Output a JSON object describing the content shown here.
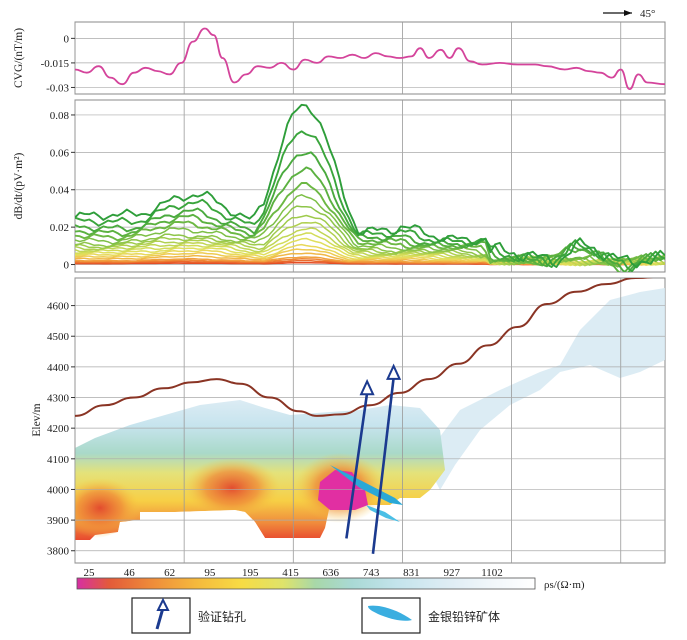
{
  "direction": {
    "label": "45°"
  },
  "chart_data": [
    {
      "type": "line",
      "id": "cvg",
      "ylabel": "CVG/(nT/m)",
      "yticks": [
        0,
        -0.015,
        -0.03
      ],
      "ylim": [
        -0.034,
        0.01
      ],
      "xlim": [
        0,
        100
      ],
      "color": "#d4449b",
      "series": [
        {
          "name": "CVG",
          "points": [
            [
              0,
              -0.019
            ],
            [
              2,
              -0.021
            ],
            [
              4,
              -0.017
            ],
            [
              6,
              -0.024
            ],
            [
              8,
              -0.028
            ],
            [
              10,
              -0.021
            ],
            [
              12,
              -0.018
            ],
            [
              14,
              -0.02
            ],
            [
              16,
              -0.022
            ],
            [
              18,
              -0.015
            ],
            [
              20,
              -0.002
            ],
            [
              22,
              0.006
            ],
            [
              23.5,
              0.002
            ],
            [
              25,
              -0.012
            ],
            [
              27,
              -0.027
            ],
            [
              29,
              -0.022
            ],
            [
              31,
              -0.017
            ],
            [
              33,
              -0.018
            ],
            [
              35,
              -0.015
            ],
            [
              37,
              -0.019
            ],
            [
              39,
              -0.013
            ],
            [
              41,
              -0.015
            ],
            [
              43,
              -0.011
            ],
            [
              45,
              -0.012
            ],
            [
              47,
              -0.01
            ],
            [
              49,
              -0.012
            ],
            [
              51,
              -0.009
            ],
            [
              53,
              -0.011
            ],
            [
              55,
              -0.012
            ],
            [
              57,
              -0.011
            ],
            [
              58.5,
              -0.006
            ],
            [
              60,
              -0.012
            ],
            [
              62,
              -0.007
            ],
            [
              63.5,
              -0.012
            ],
            [
              65,
              -0.006
            ],
            [
              67,
              -0.014
            ],
            [
              69,
              -0.016
            ],
            [
              72,
              -0.015
            ],
            [
              75,
              -0.016
            ],
            [
              78,
              -0.016
            ],
            [
              80,
              -0.017
            ],
            [
              83,
              -0.019
            ],
            [
              85,
              -0.018
            ],
            [
              87,
              -0.02
            ],
            [
              89,
              -0.021
            ],
            [
              91,
              -0.024
            ],
            [
              92.5,
              -0.019
            ],
            [
              94,
              -0.031
            ],
            [
              95.5,
              -0.022
            ],
            [
              97,
              -0.027
            ],
            [
              100,
              -0.028
            ]
          ]
        }
      ]
    },
    {
      "type": "line",
      "id": "dbdt",
      "ylabel": "dB/dt/(pV·m²)",
      "yticks": [
        0,
        0.02,
        0.04,
        0.06,
        0.08
      ],
      "ylim": [
        -0.004,
        0.088
      ],
      "xlim": [
        0,
        100
      ],
      "peak_x": 39,
      "peak_values": [
        0.084,
        0.071,
        0.06,
        0.051,
        0.043,
        0.037,
        0.032,
        0.027,
        0.023,
        0.019,
        0.016,
        0.013,
        0.01,
        0.008,
        0.006,
        0.004,
        0.003,
        0.002,
        0.001
      ],
      "base_values": [
        0.025,
        0.022,
        0.019,
        0.017,
        0.015,
        0.013,
        0.011,
        0.01,
        0.009,
        0.008,
        0.007,
        0.006,
        0.005,
        0.004,
        0.003,
        0.002,
        0.0015,
        0.001,
        0.0005
      ],
      "colors": [
        "#2e9e3a",
        "#3aa53c",
        "#4aaa3e",
        "#5bb140",
        "#6cb843",
        "#7dbf46",
        "#8ec549",
        "#9fcb4c",
        "#b0d050",
        "#c1d654",
        "#d2dc58",
        "#e0df5c",
        "#e8d85a",
        "#eecb52",
        "#f0b848",
        "#f0a03e",
        "#ee8534",
        "#ea692c",
        "#e44e26"
      ]
    },
    {
      "type": "heatmap",
      "id": "section",
      "ylabel": "Elev/m",
      "yticks": [
        3800,
        3900,
        4000,
        4100,
        4200,
        4300,
        4400,
        4500,
        4600
      ],
      "ylim": [
        3760,
        4690
      ],
      "xlim": [
        0,
        100
      ],
      "topography": [
        [
          0,
          4240
        ],
        [
          5,
          4275
        ],
        [
          10,
          4300
        ],
        [
          15,
          4330
        ],
        [
          20,
          4350
        ],
        [
          24,
          4360
        ],
        [
          28,
          4345
        ],
        [
          33,
          4300
        ],
        [
          38,
          4255
        ],
        [
          41,
          4240
        ],
        [
          45,
          4245
        ],
        [
          50,
          4275
        ],
        [
          55,
          4315
        ],
        [
          60,
          4360
        ],
        [
          65,
          4410
        ],
        [
          70,
          4470
        ],
        [
          75,
          4530
        ],
        [
          80,
          4605
        ],
        [
          85,
          4645
        ],
        [
          90,
          4670
        ],
        [
          95,
          4690
        ],
        [
          100,
          4695
        ]
      ],
      "color_ticks": [
        "25",
        "46",
        "62",
        "95",
        "195",
        "415",
        "636",
        "743",
        "831",
        "927",
        "1102"
      ],
      "colorbar_colors": [
        "#d62fa3",
        "#e35a3a",
        "#ee8a3a",
        "#f5b93d",
        "#f7dc44",
        "#dfe36a",
        "#a8d8a8",
        "#a9d9d5",
        "#c4e4ec",
        "#dcecf4",
        "#f0f6fa",
        "#ffffff"
      ],
      "colorbar_label": "ρs/(Ω·m)",
      "boreholes": [
        {
          "top": [
            49.5,
            4340
          ],
          "bottom": [
            46,
            3840
          ]
        },
        {
          "top": [
            54,
            4390
          ],
          "bottom": [
            50.5,
            3790
          ]
        }
      ]
    }
  ],
  "legend": {
    "borehole_label": "验证钻孔",
    "ore_label": "金银铅锌矿体"
  }
}
